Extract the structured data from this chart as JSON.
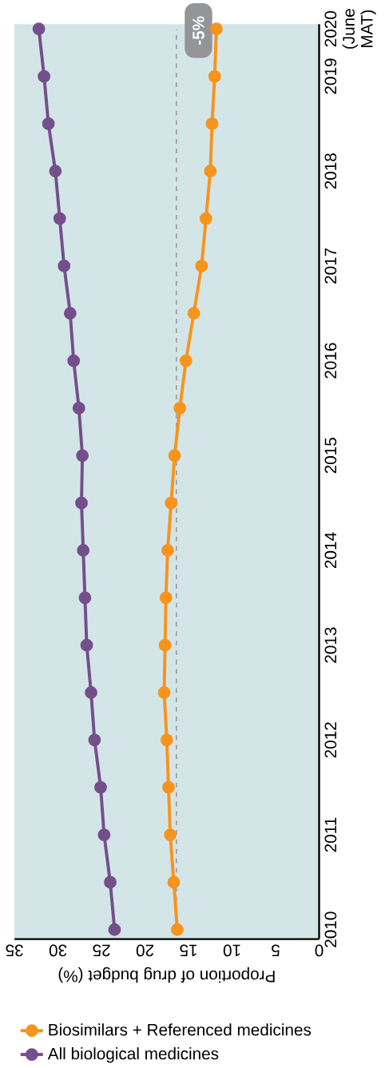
{
  "chart_data": {
    "type": "line",
    "xlabel": "Proportion of drug budget (%)",
    "xlim": [
      35,
      0
    ],
    "xticks": [
      0,
      5,
      10,
      15,
      20,
      25,
      30,
      35
    ],
    "ylim": [
      2009.9,
      2019.55
    ],
    "yticks": [
      2010,
      2011,
      2012,
      2013,
      2014,
      2015,
      2016,
      2017,
      2018,
      2019,
      {
        "value": 2019.5,
        "label": "2020 (June MAT)"
      }
    ],
    "series": [
      {
        "name": "Biosimilars + Referenced medicines",
        "color": "#f7941d",
        "x": [
          16.3,
          16.7,
          17.1,
          17.3,
          17.5,
          17.8,
          17.7,
          17.6,
          17.4,
          17.0,
          16.6,
          16.0,
          15.3,
          14.4,
          13.5,
          13.0,
          12.5,
          12.3,
          12.0,
          11.8
        ],
        "values": [
          2010,
          2010.5,
          2011,
          2011.5,
          2012,
          2012.5,
          2013,
          2013.5,
          2014,
          2014.5,
          2015,
          2015.5,
          2016,
          2016.5,
          2017,
          2017.5,
          2018,
          2018.5,
          2019,
          2019.5
        ]
      },
      {
        "name": "All biological medicines",
        "color": "#744f8c",
        "x": [
          23.5,
          24.0,
          24.7,
          25.1,
          25.8,
          26.2,
          26.7,
          26.9,
          27.1,
          27.3,
          27.2,
          27.6,
          28.2,
          28.6,
          29.3,
          29.8,
          30.3,
          31.1,
          31.6,
          32.2
        ],
        "values": [
          2010,
          2010.5,
          2011,
          2011.5,
          2012,
          2012.5,
          2013,
          2013.5,
          2014,
          2014.5,
          2015,
          2015.5,
          2016,
          2016.5,
          2017,
          2017.5,
          2018,
          2018.5,
          2019,
          2019.5
        ]
      }
    ],
    "marker": "circle",
    "legend": "bottom",
    "grid": false,
    "ref_lines": [
      {
        "axis": "x",
        "value": 16.4,
        "color": "#999999",
        "line_style": "dashed"
      }
    ],
    "annotations": [
      "-5%"
    ]
  }
}
